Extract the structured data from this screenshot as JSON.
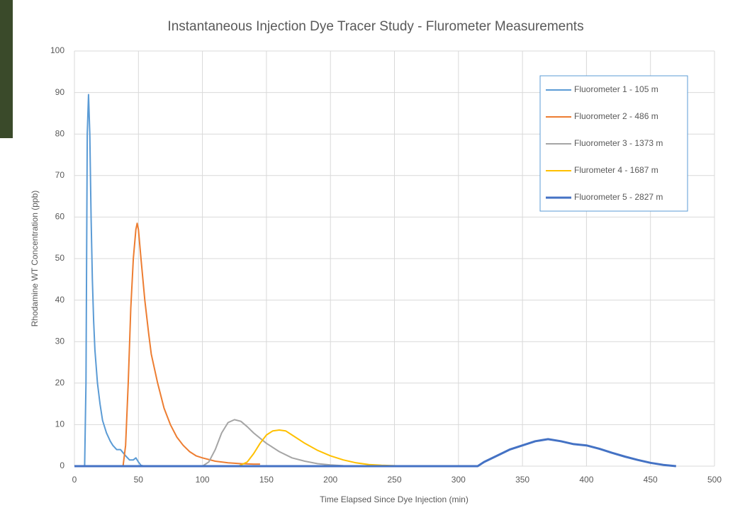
{
  "chart_data": {
    "type": "line",
    "title": "Instantaneous Injection Dye Tracer Study - Flurometer Measurements",
    "xlabel": "Time Elapsed Since Dye Injection (min)",
    "ylabel": "Rhodamine WT Concentration (ppb)",
    "xlim": [
      0,
      500
    ],
    "xticks": [
      0,
      50,
      100,
      150,
      200,
      250,
      300,
      350,
      400,
      450,
      500
    ],
    "ylim": [
      0,
      100
    ],
    "yticks": [
      0,
      10,
      20,
      30,
      40,
      50,
      60,
      70,
      80,
      90,
      100
    ],
    "grid": true,
    "legend": "upper right",
    "series": [
      {
        "name": "Fluorometer 1 - 105 m",
        "color": "#5b9bd5",
        "width": 2,
        "x": [
          8,
          9,
          10,
          11,
          12,
          13,
          14,
          15,
          16,
          18,
          20,
          22,
          25,
          28,
          30,
          33,
          36,
          40,
          43,
          46,
          48,
          50,
          52,
          55
        ],
        "values": [
          0,
          20,
          80,
          89.5,
          80,
          60,
          45,
          35,
          28,
          20,
          15,
          11,
          8,
          6,
          5,
          4,
          4,
          2.5,
          1.5,
          1.5,
          2,
          1,
          0.2,
          0
        ]
      },
      {
        "name": "Fluorometer 2 - 486 m",
        "color": "#ed7d31",
        "width": 2,
        "x": [
          38,
          40,
          42,
          44,
          46,
          48,
          49,
          50,
          52,
          55,
          58,
          60,
          65,
          70,
          75,
          80,
          85,
          90,
          95,
          100,
          110,
          120,
          130,
          140,
          145
        ],
        "values": [
          0,
          5,
          20,
          38,
          50,
          57,
          58.5,
          57,
          50,
          40,
          32,
          27,
          20,
          14,
          10,
          7,
          5,
          3.5,
          2.5,
          2,
          1.2,
          0.8,
          0.6,
          0.5,
          0.5
        ]
      },
      {
        "name": "Fluorometer 3 - 1373 m",
        "color": "#a5a5a5",
        "width": 2,
        "x": [
          100,
          105,
          110,
          115,
          120,
          125,
          130,
          135,
          140,
          150,
          160,
          170,
          180,
          190,
          200,
          210,
          220
        ],
        "values": [
          0,
          1,
          4,
          8,
          10.5,
          11.2,
          10.8,
          9.5,
          8,
          5.5,
          3.5,
          2,
          1.2,
          0.6,
          0.3,
          0.1,
          0
        ]
      },
      {
        "name": "Flurometer 4 - 1687 m",
        "color": "#ffc000",
        "width": 2,
        "x": [
          128,
          135,
          140,
          145,
          150,
          155,
          160,
          165,
          170,
          180,
          190,
          200,
          210,
          220,
          230,
          240,
          250,
          260
        ],
        "values": [
          0,
          1,
          3,
          5.5,
          7.5,
          8.5,
          8.7,
          8.5,
          7.5,
          5.5,
          3.8,
          2.5,
          1.5,
          0.8,
          0.4,
          0.2,
          0.1,
          0
        ]
      },
      {
        "name": "Fluorometer 5 - 2827 m",
        "color": "#4472c4",
        "width": 3,
        "x": [
          0,
          315,
          320,
          330,
          340,
          350,
          360,
          370,
          380,
          390,
          400,
          410,
          420,
          430,
          440,
          450,
          460,
          470
        ],
        "values": [
          0,
          0,
          1,
          2.5,
          4,
          5,
          6,
          6.5,
          6,
          5.3,
          5,
          4.2,
          3.2,
          2.3,
          1.5,
          0.8,
          0.3,
          0
        ]
      }
    ]
  }
}
